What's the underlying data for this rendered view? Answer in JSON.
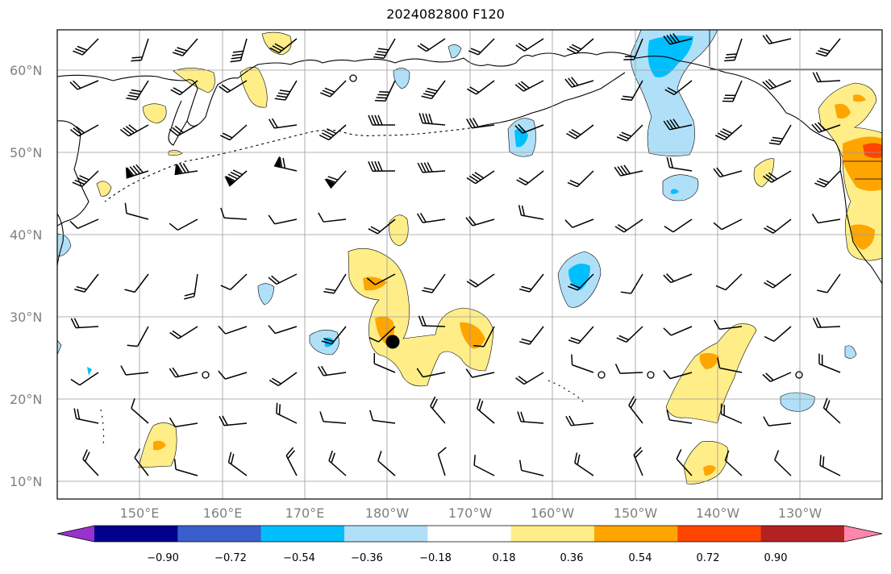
{
  "title": "2024082800 F120",
  "lat_labels": [
    "60°N",
    "50°N",
    "40°N",
    "30°N",
    "20°N",
    "10°N"
  ],
  "lon_labels": [
    "150°E",
    "160°E",
    "170°E",
    "180°W",
    "170°W",
    "160°W",
    "150°W",
    "140°W",
    "130°W"
  ],
  "colorbar": {
    "ticks": [
      "−0.90",
      "−0.72",
      "−0.54",
      "−0.36",
      "−0.18",
      "0.18",
      "0.36",
      "0.54",
      "0.72",
      "0.90"
    ],
    "colors": [
      "#9932cc",
      "#00008b",
      "#3a5fcd",
      "#00bfff",
      "#b0e0f8",
      "#ffffff",
      "#ffee88",
      "#ffa500",
      "#ff4500",
      "#b22222",
      "#ff88aa"
    ]
  },
  "marker": "storm-center-dot"
}
